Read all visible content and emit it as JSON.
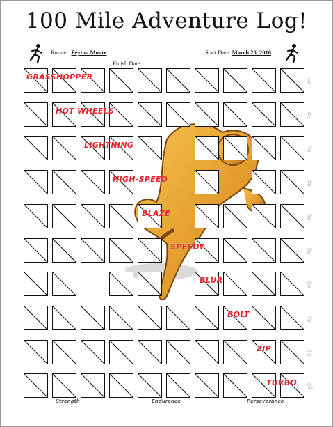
{
  "log": {
    "title": "100 Mile Adventure Log!",
    "runner_label": "Runner:",
    "runner_name": "Peyton Moore",
    "start_date_label": "Start Date:",
    "start_date": "March 20, 2010",
    "finish_date_label": "Finish Date:",
    "finish_date": ""
  },
  "icons": {
    "left": "runner-icon",
    "right": "runner-icon"
  },
  "colors": {
    "nickname": "#e8242b",
    "mascot": "#e29b2c"
  },
  "rows": [
    {
      "nickname": "GRASSHOPPER",
      "marker": "1-10"
    },
    {
      "nickname": "HOT WHEELS",
      "marker": "11-20"
    },
    {
      "nickname": "LIGHTNING",
      "marker": "21-30"
    },
    {
      "nickname": "HIGH-SPEED",
      "marker": "31-40"
    },
    {
      "nickname": "BLAZE",
      "marker": "41-50"
    },
    {
      "nickname": "SPEEDY",
      "marker": "51-60"
    },
    {
      "nickname": "BLUR",
      "marker": "61-70"
    },
    {
      "nickname": "BOLT",
      "marker": "71-80"
    },
    {
      "nickname": "ZIP",
      "marker": "81-90"
    },
    {
      "nickname": "TURBO",
      "marker": "91-100"
    }
  ],
  "footer": [
    "Strength",
    "Endurance",
    "Perseverance"
  ]
}
